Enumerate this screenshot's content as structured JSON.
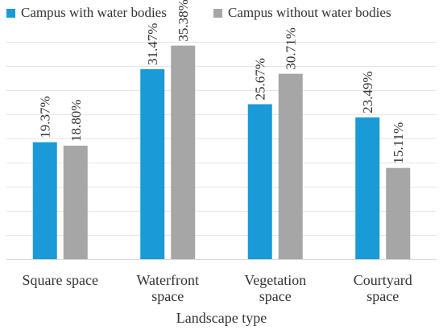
{
  "chart_data": {
    "type": "bar",
    "categories": [
      "Square space",
      "Waterfront space",
      "Vegetation space",
      "Courtyard space"
    ],
    "category_lines": [
      [
        "Square space"
      ],
      [
        "Waterfront",
        "space"
      ],
      [
        "Vegetation",
        "space"
      ],
      [
        "Courtyard",
        "space"
      ]
    ],
    "series": [
      {
        "name": "Campus with water bodies",
        "color": "#1a9ad6",
        "values": [
          19.37,
          31.47,
          25.67,
          23.49
        ],
        "labels": [
          "19.37%",
          "31.47%",
          "25.67%",
          "23.49%"
        ]
      },
      {
        "name": "Campus without water bodies",
        "color": "#a6a6a6",
        "values": [
          18.8,
          35.38,
          30.71,
          15.11
        ],
        "labels": [
          "18.80%",
          "35.38%",
          "30.71%",
          "15.11%"
        ]
      }
    ],
    "title": "",
    "xlabel": "Landscape type",
    "ylabel": "",
    "ylim": [
      0,
      40
    ],
    "grid": true,
    "legend_position": "top",
    "axis_color": "#d9d9d9",
    "text_color": "#333333"
  }
}
